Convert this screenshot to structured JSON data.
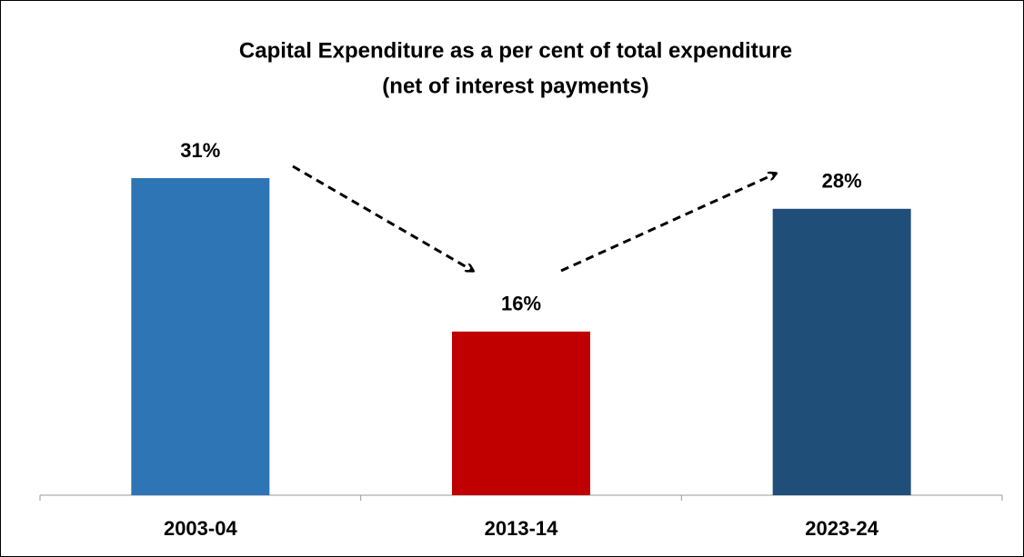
{
  "chart_data": {
    "type": "bar",
    "title": "Capital Expenditure as a per cent of  total expenditure",
    "subtitle": "(net of interest payments)",
    "categories": [
      "2003-04",
      "2013-14",
      "2023-24"
    ],
    "values": [
      31,
      16,
      28
    ],
    "value_labels": [
      "31%",
      "16%",
      "28%"
    ],
    "colors": [
      "#2e75b6",
      "#c00000",
      "#1f4e79"
    ],
    "ylim": [
      0,
      35
    ]
  }
}
